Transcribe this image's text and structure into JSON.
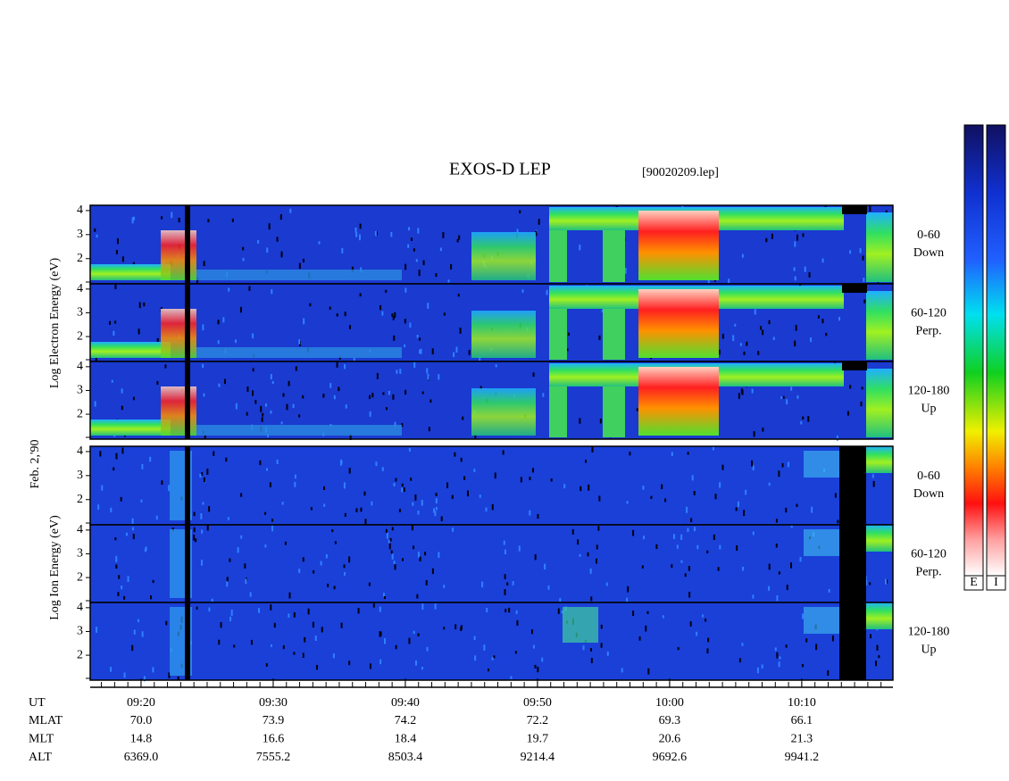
{
  "chart_data": {
    "type": "spectrogram",
    "title": "EXOS-D LEP",
    "subtitle": "[90020209.lep]",
    "date_label": "Feb. 2,'90",
    "electron_axis_label": "Log  Electron  Energy (eV)",
    "ion_axis_label": "Log  Ion  Energy (eV)",
    "xlim": [
      16.15,
      76.9
    ],
    "xticks": [
      {
        "value": 20,
        "label": "09:20"
      },
      {
        "value": 30,
        "label": "09:30"
      },
      {
        "value": 40,
        "label": "09:40"
      },
      {
        "value": 50,
        "label": "09:50"
      },
      {
        "value": 60,
        "label": "10:00"
      },
      {
        "value": 70,
        "label": "10:10"
      }
    ],
    "x_row_label": "UT",
    "ylim": [
      0.95,
      4.22
    ],
    "yticks": [
      2,
      3,
      4
    ],
    "panels": [
      {
        "species": "electron",
        "pitch": "0-60",
        "direction": "Down"
      },
      {
        "species": "electron",
        "pitch": "60-120",
        "direction": "Perp."
      },
      {
        "species": "electron",
        "pitch": "120-180",
        "direction": "Up"
      },
      {
        "species": "ion",
        "pitch": "0-60",
        "direction": "Down"
      },
      {
        "species": "ion",
        "pitch": "60-120",
        "direction": "Perp."
      },
      {
        "species": "ion",
        "pitch": "120-180",
        "direction": "Up"
      }
    ],
    "ephemeris": [
      {
        "name": "MLAT",
        "values": [
          "70.0",
          "73.9",
          "74.2",
          "72.2",
          "69.3",
          "66.1"
        ]
      },
      {
        "name": "MLT",
        "values": [
          "14.8",
          "16.6",
          "18.4",
          "19.7",
          "20.6",
          "21.3"
        ]
      },
      {
        "name": "ALT",
        "values": [
          "6369.0",
          "7555.2",
          "8503.4",
          "9214.4",
          "9692.6",
          "9941.2"
        ]
      }
    ],
    "colorbars": [
      "E",
      "I"
    ]
  }
}
